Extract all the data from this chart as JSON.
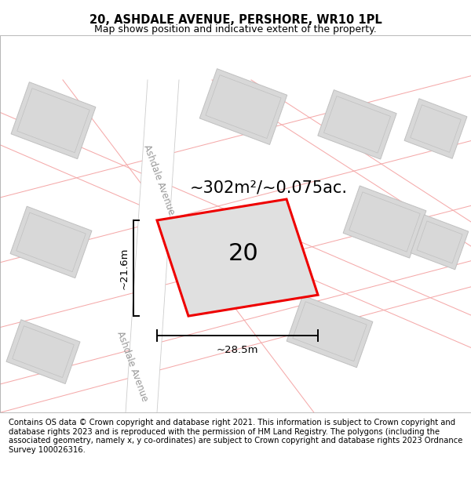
{
  "title": "20, ASHDALE AVENUE, PERSHORE, WR10 1PL",
  "subtitle": "Map shows position and indicative extent of the property.",
  "footer": "Contains OS data © Crown copyright and database right 2021. This information is subject to Crown copyright and database rights 2023 and is reproduced with the permission of HM Land Registry. The polygons (including the associated geometry, namely x, y co-ordinates) are subject to Crown copyright and database rights 2023 Ordnance Survey 100026316.",
  "map_bg": "#f2f2f2",
  "building_fill": "#d8d8d8",
  "building_border": "#c0c0c0",
  "road_fill": "#ffffff",
  "prop_fill": "#e0e0e0",
  "prop_border": "#ee0000",
  "road_line_color": "#f5aaaa",
  "area_label": "~302m²/~0.075ac.",
  "number_label": "20",
  "dim_width": "~28.5m",
  "dim_height": "~21.6m",
  "street_name": "Ashdale Avenue",
  "title_fontsize": 10.5,
  "subtitle_fontsize": 9,
  "footer_fontsize": 7.2,
  "area_label_fontsize": 15,
  "number_label_fontsize": 22,
  "street_fontsize": 8.5,
  "dim_fontsize": 9.5
}
